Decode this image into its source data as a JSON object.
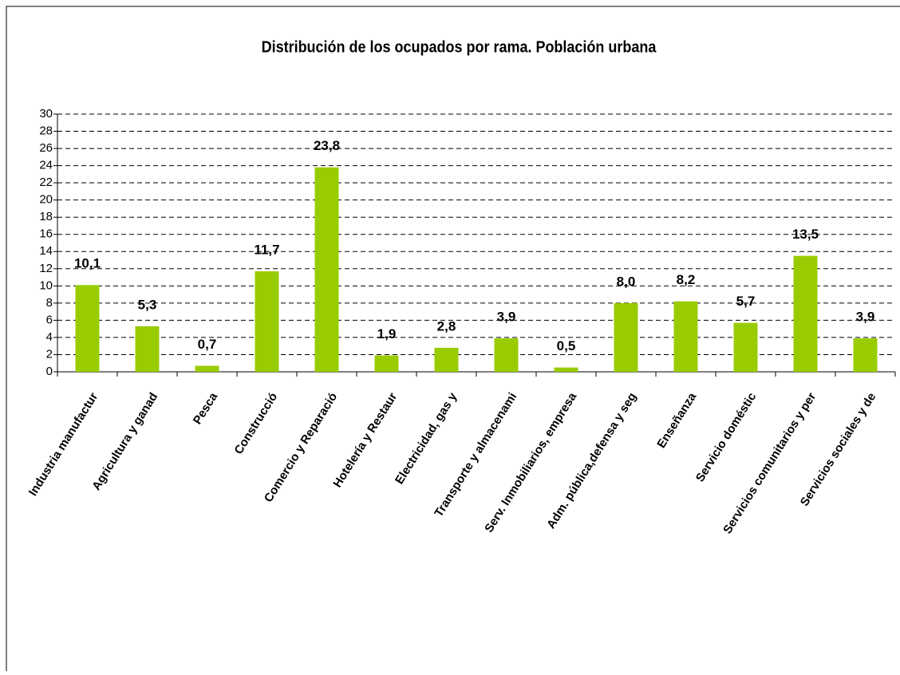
{
  "chart_data": {
    "type": "bar",
    "title": "Distribución de los ocupados por rama. Población urbana",
    "categories": [
      "Industria manufactur",
      "Agricultura y ganad",
      "Pesca",
      "Construcció",
      "Comercio y Reparació",
      "Hotelería y Restaur",
      "Electricidad, gas y",
      "Transporte y almacenami",
      "Serv. Inmobiliarios, empresa",
      "Adm. pública,defensa y seg",
      "Enseñanza",
      "Servicio doméstic",
      "Servicios comunitarios y per",
      "Servicios sociales y de"
    ],
    "values": [
      10.1,
      5.3,
      0.7,
      11.7,
      23.8,
      1.9,
      2.8,
      3.9,
      0.5,
      8.0,
      8.2,
      5.7,
      13.5,
      3.9
    ],
    "value_labels": [
      "10,1",
      "5,3",
      "0,7",
      "11,7",
      "23,8",
      "1,9",
      "2,8",
      "3,9",
      "0,5",
      "8,0",
      "8,2",
      "5,7",
      "13,5",
      "3,9"
    ],
    "color": "#99cc00",
    "ylim": [
      0,
      30
    ],
    "yticks": [
      0,
      2,
      4,
      6,
      8,
      10,
      12,
      14,
      16,
      18,
      20,
      22,
      24,
      26,
      28,
      30
    ],
    "grid": true
  }
}
